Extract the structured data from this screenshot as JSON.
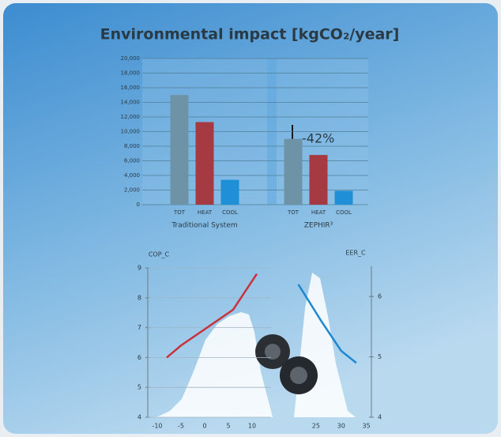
{
  "chart_data": [
    {
      "type": "bar",
      "title": "Environmental impact [kgCO₂/year]",
      "categories": [
        "TOT",
        "HEAT",
        "COOL"
      ],
      "colors": [
        "#6f93a6",
        "#a63a42",
        "#1f8fd8"
      ],
      "series": [
        {
          "name": "Traditional System",
          "values": [
            15000,
            11300,
            3400
          ]
        },
        {
          "name": "ZEPHIR³",
          "values": [
            9000,
            6800,
            1900
          ]
        }
      ],
      "annotation": "-42%",
      "ylim": [
        0,
        20000
      ],
      "yticks": [
        0,
        {
          "value": 2000,
          "label": "2,000"
        },
        {
          "value": 4000,
          "label": "4,000"
        },
        {
          "value": 6000,
          "label": "6,000"
        },
        {
          "value": 8000,
          "label": "8,000"
        },
        {
          "value": 10000,
          "label": "10,000"
        },
        {
          "value": 12000,
          "label": "12,000"
        },
        {
          "value": 14000,
          "label": "14,000"
        },
        {
          "value": 16000,
          "label": "16,000"
        },
        {
          "value": 18000,
          "label": "18,000"
        },
        {
          "value": 20000,
          "label": "20,000"
        }
      ],
      "grid": true
    },
    {
      "type": "line",
      "ylabel": "COP_C",
      "axis_side": "left",
      "x": [
        -8,
        -5,
        6,
        11
      ],
      "series": [
        {
          "color": "#c8323a",
          "values": [
            6.0,
            6.4,
            7.6,
            8.8
          ]
        }
      ],
      "xlim": [
        -12,
        14
      ],
      "xticks": [
        -10,
        -5,
        0,
        5,
        10
      ],
      "ylim": [
        4,
        9
      ],
      "yticks": [
        4,
        5,
        6,
        7,
        8,
        9
      ],
      "grid": true
    },
    {
      "type": "line",
      "ylabel": "EER_C",
      "axis_side": "right",
      "x": [
        21.5,
        26,
        30,
        33
      ],
      "series": [
        {
          "color": "#1e88d0",
          "values": [
            6.2,
            5.6,
            5.1,
            4.9
          ]
        }
      ],
      "xlim": [
        20,
        36
      ],
      "xticks": [
        25,
        30,
        35
      ],
      "ylim": [
        4,
        6.5
      ],
      "yticks": [
        4,
        5,
        6
      ],
      "grid": false
    }
  ]
}
